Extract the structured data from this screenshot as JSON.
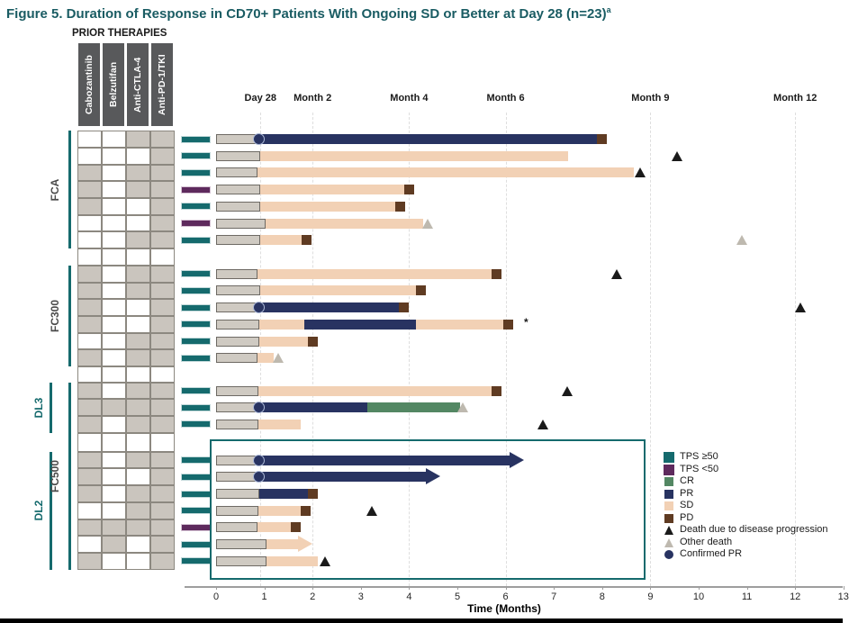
{
  "title": {
    "text": "Figure 5. Duration of Response in CD70+ Patients With Ongoing SD or Better at Day 28 (n=23)",
    "superscript": "a"
  },
  "prior_therapies": {
    "heading": "PRIOR THERAPIES",
    "columns": [
      "Cabozantinib",
      "Belzutifan",
      "Anti-CTLA-4",
      "Anti-PD-1/TKI"
    ]
  },
  "colors": {
    "teal": "#156A6D",
    "tps_high": "#156A6D",
    "tps_low": "#5E2A5D",
    "resp_pr": "#283361",
    "resp_sd": "#F2D1B5",
    "resp_pd": "#5F3B22",
    "resp_cr": "#538763",
    "death": "#1A1A1A",
    "other_death": "#BEB9AF",
    "pre_fill": "#CFCAC2",
    "pre_border": "#6E6A64",
    "grid_fill": "#CAC5BE",
    "grid_border": "#8C8880",
    "header_bg": "#58595B",
    "title": "#1A5C63",
    "gridline": "#DEDEDE",
    "axis": "#9E9E9E"
  },
  "chart_data": {
    "type": "swimmer (horizontal bar timeline)",
    "xlabel": "Time (Months)",
    "xlim": [
      0,
      13
    ],
    "x_ticks": [
      0,
      1,
      2,
      3,
      4,
      5,
      6,
      7,
      8,
      9,
      10,
      11,
      12,
      13
    ],
    "time_labels": [
      {
        "label": "Day 28",
        "month": 0.92
      },
      {
        "label": "Month 2",
        "month": 2
      },
      {
        "label": "Month 4",
        "month": 4
      },
      {
        "label": "Month 6",
        "month": 6
      },
      {
        "label": "Month 9",
        "month": 9
      },
      {
        "label": "Month 12",
        "month": 12
      }
    ],
    "groups": [
      {
        "id": "FCA",
        "label": "FCA",
        "label_color": "gray",
        "bracket": "outer",
        "rows": [
          {
            "tps": "≥50",
            "prior_therapies": [
              0,
              0,
              1,
              1
            ],
            "pre_response_end": 0.88,
            "segments": [
              {
                "response": "PR",
                "start": 0.88,
                "end": 7.9
              }
            ],
            "markers": [
              {
                "type": "confirmed_pr",
                "month": 0.88
              },
              {
                "type": "pd",
                "month": 7.9
              }
            ]
          },
          {
            "tps": "≥50",
            "prior_therapies": [
              0,
              0,
              0,
              1
            ],
            "pre_response_end": 0.92,
            "segments": [
              {
                "response": "SD",
                "start": 0.92,
                "end": 7.3
              }
            ],
            "markers": [
              {
                "type": "death",
                "month": 9.55
              }
            ]
          },
          {
            "tps": "≥50",
            "prior_therapies": [
              1,
              0,
              1,
              1
            ],
            "pre_response_end": 0.85,
            "segments": [
              {
                "response": "SD",
                "start": 0.85,
                "end": 8.65
              }
            ],
            "markers": [
              {
                "type": "death",
                "month": 8.78
              }
            ]
          },
          {
            "tps": "<50",
            "prior_therapies": [
              1,
              0,
              1,
              1
            ],
            "pre_response_end": 0.92,
            "segments": [
              {
                "response": "SD",
                "start": 0.92,
                "end": 3.9
              }
            ],
            "markers": [
              {
                "type": "pd",
                "month": 3.9
              }
            ]
          },
          {
            "tps": "≥50",
            "prior_therapies": [
              1,
              0,
              0,
              1
            ],
            "pre_response_end": 0.92,
            "segments": [
              {
                "response": "SD",
                "start": 0.92,
                "end": 3.72
              }
            ],
            "markers": [
              {
                "type": "pd",
                "month": 3.72
              }
            ]
          },
          {
            "tps": "<50",
            "prior_therapies": [
              0,
              0,
              0,
              1
            ],
            "pre_response_end": 1.02,
            "segments": [
              {
                "response": "SD",
                "start": 1.02,
                "end": 4.3
              }
            ],
            "markers": [
              {
                "type": "other_death",
                "month": 4.38
              }
            ]
          },
          {
            "tps": "≥50",
            "prior_therapies": [
              0,
              0,
              1,
              1
            ],
            "pre_response_end": 0.92,
            "segments": [
              {
                "response": "SD",
                "start": 0.92,
                "end": 1.78
              }
            ],
            "markers": [
              {
                "type": "pd",
                "month": 1.78
              },
              {
                "type": "other_death",
                "month": 10.9
              }
            ]
          }
        ]
      },
      {
        "id": "FC300",
        "label": "FC300",
        "label_color": "gray",
        "bracket": "outer",
        "rows": [
          {
            "tps": "≥50",
            "prior_therapies": [
              1,
              0,
              1,
              1
            ],
            "pre_response_end": 0.85,
            "segments": [
              {
                "response": "SD",
                "start": 0.85,
                "end": 5.7
              }
            ],
            "markers": [
              {
                "type": "pd",
                "month": 5.7
              },
              {
                "type": "death",
                "month": 8.3
              }
            ]
          },
          {
            "tps": "≥50",
            "prior_therapies": [
              1,
              0,
              1,
              1
            ],
            "pre_response_end": 0.92,
            "segments": [
              {
                "response": "SD",
                "start": 0.92,
                "end": 4.15
              }
            ],
            "markers": [
              {
                "type": "pd",
                "month": 4.15
              }
            ]
          },
          {
            "tps": "≥50",
            "prior_therapies": [
              1,
              0,
              0,
              1
            ],
            "pre_response_end": 0.88,
            "segments": [
              {
                "response": "PR",
                "start": 0.88,
                "end": 3.78
              }
            ],
            "markers": [
              {
                "type": "confirmed_pr",
                "month": 0.88
              },
              {
                "type": "pd",
                "month": 3.78
              },
              {
                "type": "death",
                "month": 12.1
              }
            ]
          },
          {
            "tps": "≥50",
            "prior_therapies": [
              1,
              0,
              0,
              1
            ],
            "pre_response_end": 0.9,
            "segments": [
              {
                "response": "SD",
                "start": 0.9,
                "end": 1.83
              },
              {
                "response": "PR",
                "start": 1.83,
                "end": 4.14
              },
              {
                "response": "SD",
                "start": 4.14,
                "end": 5.95
              }
            ],
            "markers": [
              {
                "type": "pd",
                "month": 5.95
              },
              {
                "type": "note",
                "month": 6.38,
                "text": "*"
              }
            ]
          },
          {
            "tps": "≥50",
            "prior_therapies": [
              0,
              0,
              1,
              1
            ],
            "pre_response_end": 0.9,
            "segments": [
              {
                "response": "SD",
                "start": 0.9,
                "end": 1.9
              }
            ],
            "markers": [
              {
                "type": "pd",
                "month": 1.9
              }
            ]
          },
          {
            "tps": "≥50",
            "prior_therapies": [
              1,
              0,
              1,
              1
            ],
            "pre_response_end": 0.85,
            "segments": [
              {
                "response": "SD",
                "start": 0.85,
                "end": 1.2
              }
            ],
            "markers": [
              {
                "type": "other_death",
                "month": 1.28
              }
            ]
          }
        ]
      },
      {
        "id": "DL3",
        "label": "DL3",
        "label_color": "teal",
        "bracket": "inner",
        "rows": [
          {
            "tps": "≥50",
            "prior_therapies": [
              1,
              0,
              1,
              1
            ],
            "pre_response_end": 0.88,
            "segments": [
              {
                "response": "SD",
                "start": 0.88,
                "end": 5.7
              }
            ],
            "markers": [
              {
                "type": "pd",
                "month": 5.7
              },
              {
                "type": "death",
                "month": 7.28
              }
            ]
          },
          {
            "tps": "≥50",
            "prior_therapies": [
              1,
              1,
              1,
              1
            ],
            "pre_response_end": 0.88,
            "segments": [
              {
                "response": "PR",
                "start": 0.88,
                "end": 3.13
              },
              {
                "response": "CR",
                "start": 3.13,
                "end": 5.05
              }
            ],
            "markers": [
              {
                "type": "confirmed_pr",
                "month": 0.88
              },
              {
                "type": "other_death",
                "month": 5.12
              }
            ]
          },
          {
            "tps": "≥50",
            "prior_therapies": [
              1,
              0,
              1,
              1
            ],
            "pre_response_end": 0.88,
            "segments": [
              {
                "response": "SD",
                "start": 0.88,
                "end": 1.75
              }
            ],
            "markers": [
              {
                "type": "death",
                "month": 6.78
              }
            ]
          }
        ]
      },
      {
        "id": "DL2",
        "label": "DL2",
        "label_color": "teal",
        "bracket": "inner",
        "highlight_box": true,
        "rows": [
          {
            "tps": "≥50",
            "prior_therapies": [
              1,
              0,
              1,
              1
            ],
            "pre_response_end": 0.88,
            "segments": [
              {
                "response": "PR",
                "start": 0.88,
                "end": 6.1,
                "arrow": true
              }
            ],
            "markers": [
              {
                "type": "confirmed_pr",
                "month": 0.88
              }
            ]
          },
          {
            "tps": "≥50",
            "prior_therapies": [
              1,
              0,
              0,
              1
            ],
            "pre_response_end": 0.88,
            "segments": [
              {
                "response": "PR",
                "start": 0.88,
                "end": 4.36,
                "arrow": true
              }
            ],
            "markers": [
              {
                "type": "confirmed_pr",
                "month": 0.88
              }
            ]
          },
          {
            "tps": "≥50",
            "prior_therapies": [
              1,
              0,
              1,
              1
            ],
            "pre_response_end": 0.9,
            "segments": [
              {
                "response": "PR",
                "start": 0.9,
                "end": 1.9
              }
            ],
            "markers": [
              {
                "type": "pd",
                "month": 1.9
              }
            ]
          },
          {
            "tps": "≥50",
            "prior_therapies": [
              0,
              0,
              1,
              1
            ],
            "pre_response_end": 0.88,
            "segments": [
              {
                "response": "SD",
                "start": 0.88,
                "end": 1.75
              }
            ],
            "markers": [
              {
                "type": "pd",
                "month": 1.75
              },
              {
                "type": "death",
                "month": 3.23
              }
            ]
          },
          {
            "tps": "<50",
            "prior_therapies": [
              1,
              1,
              1,
              1
            ],
            "pre_response_end": 0.85,
            "segments": [
              {
                "response": "SD",
                "start": 0.85,
                "end": 1.55
              }
            ],
            "markers": [
              {
                "type": "pd",
                "month": 1.55
              }
            ]
          },
          {
            "tps": "≥50",
            "prior_therapies": [
              0,
              1,
              0,
              1
            ],
            "pre_response_end": 1.05,
            "segments": [
              {
                "response": "SD",
                "start": 1.05,
                "end": 1.72,
                "arrow": true
              }
            ],
            "markers": []
          },
          {
            "tps": "≥50",
            "prior_therapies": [
              1,
              0,
              0,
              1
            ],
            "pre_response_end": 1.05,
            "segments": [
              {
                "response": "SD",
                "start": 1.05,
                "end": 2.1
              }
            ],
            "markers": [
              {
                "type": "death",
                "month": 2.25
              }
            ]
          }
        ]
      }
    ],
    "super_group": {
      "label": "FC500",
      "label_color": "gray",
      "spans": [
        "DL3",
        "DL2"
      ]
    },
    "legend": [
      {
        "symbol": "square_lg",
        "color_key": "tps_high",
        "label": "TPS ≥50"
      },
      {
        "symbol": "square_lg",
        "color_key": "tps_low",
        "label": "TPS <50"
      },
      {
        "symbol": "square",
        "color_key": "resp_cr",
        "label": "CR"
      },
      {
        "symbol": "square",
        "color_key": "resp_pr",
        "label": "PR"
      },
      {
        "symbol": "square",
        "color_key": "resp_sd",
        "label": "SD"
      },
      {
        "symbol": "square",
        "color_key": "resp_pd",
        "label": "PD"
      },
      {
        "symbol": "triangle",
        "color_key": "death",
        "label": "Death due to disease progression"
      },
      {
        "symbol": "triangle",
        "color_key": "other_death",
        "label": "Other death"
      },
      {
        "symbol": "circle",
        "color_key": "resp_pr",
        "label": "Confirmed PR"
      }
    ]
  }
}
